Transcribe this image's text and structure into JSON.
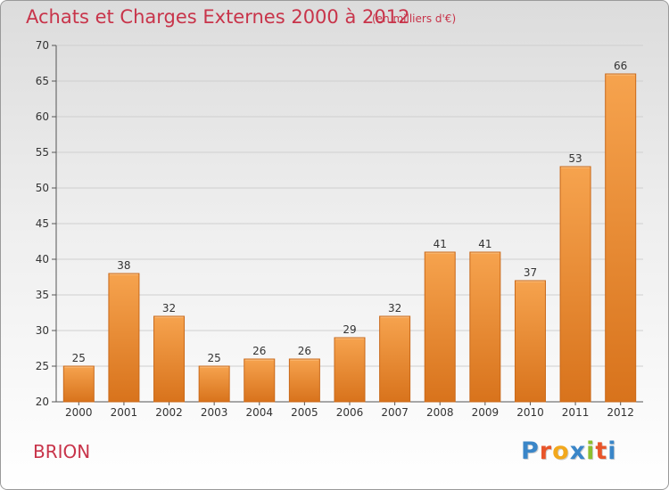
{
  "header": {
    "title": "Achats et Charges Externes 2000 à 2012",
    "subtitle": "(en milliers d'€)"
  },
  "footer": {
    "commune": "BRION",
    "logo_text": "Proxiti",
    "logo_colors": [
      "#3a86c8",
      "#e8552a",
      "#f2a81d",
      "#3a86c8",
      "#8cbf2f",
      "#e8552a",
      "#3a86c8"
    ]
  },
  "colors": {
    "bar_top": "#f6a34e",
    "bar_bottom": "#d8731c",
    "bar_edge": "#c9691a",
    "grid": "#cfcfcf",
    "title": "#c8344a"
  },
  "chart_data": {
    "type": "bar",
    "title": "Achats et Charges Externes 2000 à 2012",
    "subtitle": "(en milliers d'€)",
    "categories": [
      "2000",
      "2001",
      "2002",
      "2003",
      "2004",
      "2005",
      "2006",
      "2007",
      "2008",
      "2009",
      "2010",
      "2011",
      "2012"
    ],
    "values": [
      25,
      38,
      32,
      25,
      26,
      26,
      29,
      32,
      41,
      41,
      37,
      53,
      66
    ],
    "ylim": [
      20,
      70
    ],
    "yticks": [
      20,
      25,
      30,
      35,
      40,
      45,
      50,
      55,
      60,
      65,
      70
    ],
    "grid": true,
    "data_labels": true,
    "xlabel": "",
    "ylabel": ""
  }
}
